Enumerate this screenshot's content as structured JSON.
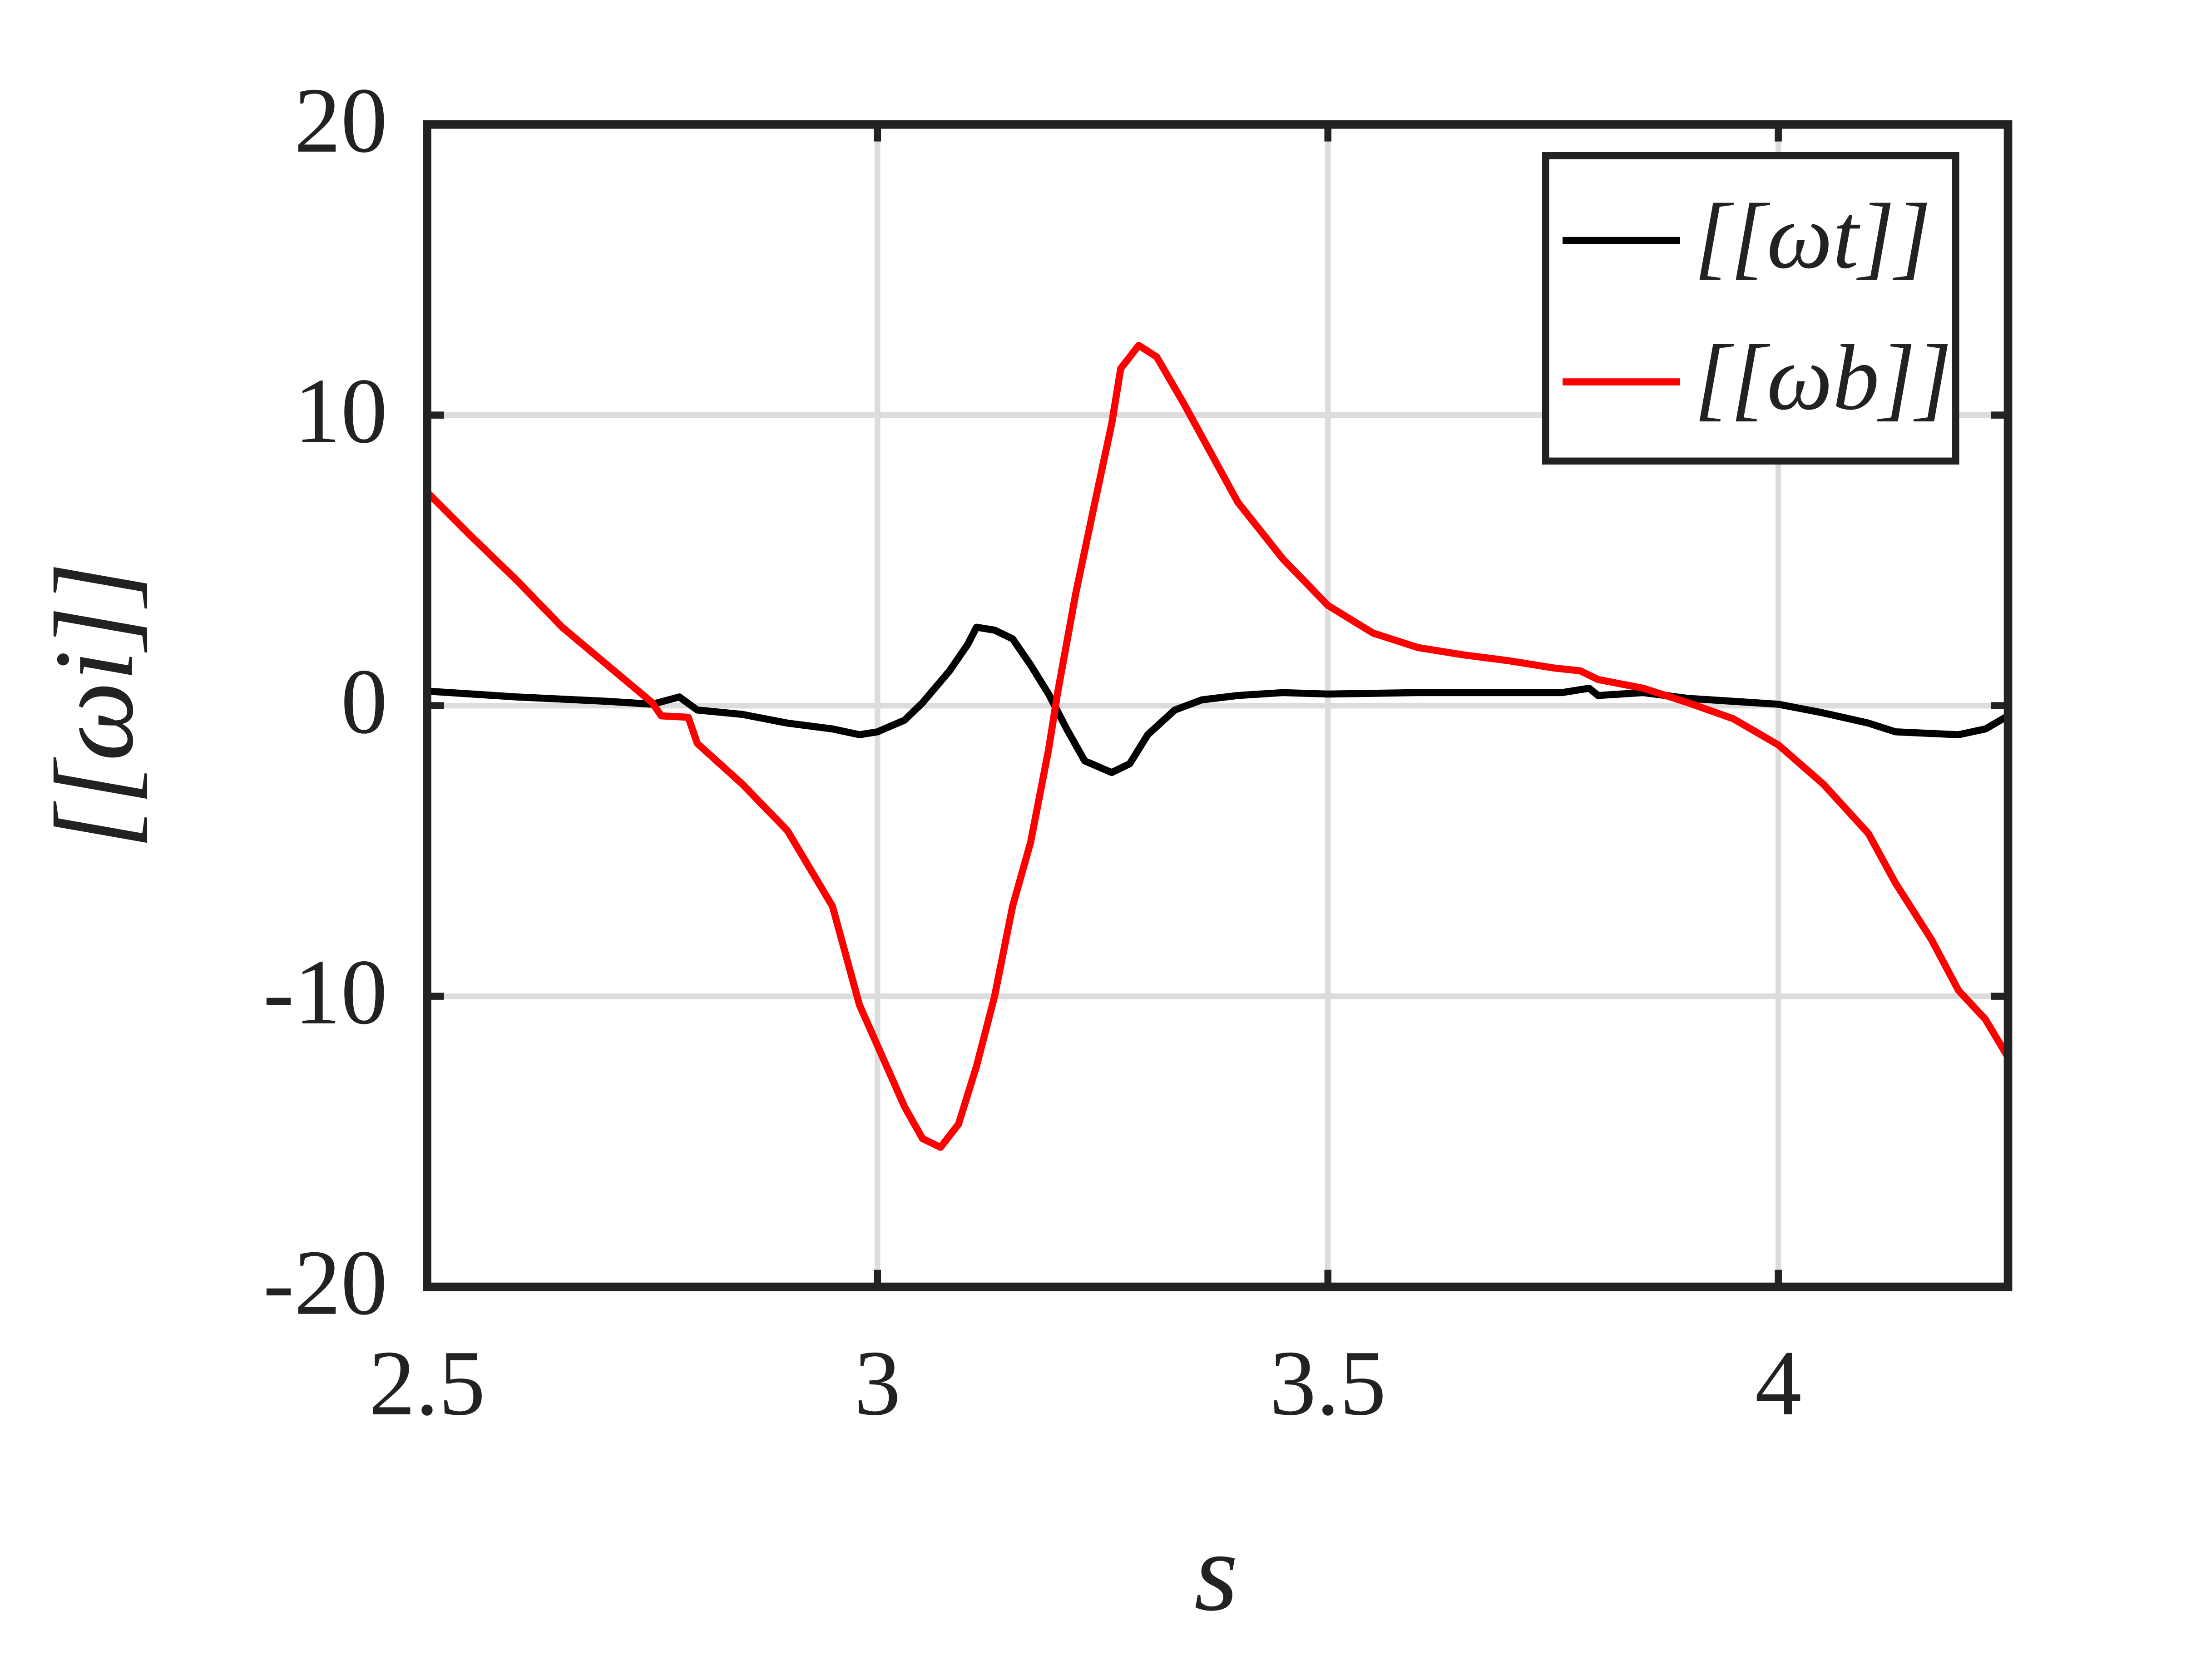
{
  "chart_data": {
    "type": "line",
    "xlabel": "s",
    "ylabel": "[[ωi]]",
    "xlim": [
      2.5,
      4.255
    ],
    "ylim": [
      -20,
      20
    ],
    "xticks": [
      2.5,
      3,
      3.5,
      4
    ],
    "yticks": [
      -20,
      -10,
      0,
      10,
      20
    ],
    "grid": true,
    "legend": "upper right",
    "series": [
      {
        "name": "[[ωt]]",
        "color": "#000000",
        "x": [
          2.5,
          2.55,
          2.6,
          2.7,
          2.75,
          2.78,
          2.8,
          2.85,
          2.9,
          2.95,
          2.98,
          3.0,
          3.03,
          3.05,
          3.08,
          3.1,
          3.11,
          3.13,
          3.15,
          3.17,
          3.19,
          3.21,
          3.23,
          3.26,
          3.28,
          3.3,
          3.33,
          3.36,
          3.4,
          3.45,
          3.5,
          3.6,
          3.7,
          3.76,
          3.79,
          3.8,
          3.85,
          3.9,
          3.95,
          4.0,
          4.05,
          4.1,
          4.13,
          4.2,
          4.23,
          4.255
        ],
        "values": [
          0.5,
          0.4,
          0.3,
          0.15,
          0.05,
          0.3,
          -0.15,
          -0.3,
          -0.6,
          -0.8,
          -1.0,
          -0.9,
          -0.5,
          0.1,
          1.2,
          2.1,
          2.7,
          2.6,
          2.3,
          1.4,
          0.4,
          -0.8,
          -1.9,
          -2.3,
          -2.0,
          -1.0,
          -0.15,
          0.2,
          0.35,
          0.45,
          0.4,
          0.45,
          0.45,
          0.45,
          0.6,
          0.35,
          0.45,
          0.25,
          0.15,
          0.05,
          -0.25,
          -0.6,
          -0.9,
          -1.0,
          -0.8,
          -0.35
        ]
      },
      {
        "name": "[[ωb]]",
        "color": "#ff0000",
        "x": [
          2.5,
          2.55,
          2.6,
          2.65,
          2.7,
          2.75,
          2.76,
          2.79,
          2.8,
          2.85,
          2.9,
          2.95,
          2.98,
          3.0,
          3.03,
          3.05,
          3.07,
          3.09,
          3.11,
          3.13,
          3.15,
          3.17,
          3.19,
          3.2,
          3.22,
          3.24,
          3.26,
          3.27,
          3.29,
          3.31,
          3.34,
          3.37,
          3.4,
          3.45,
          3.5,
          3.55,
          3.6,
          3.65,
          3.7,
          3.75,
          3.78,
          3.8,
          3.85,
          3.9,
          3.95,
          4.0,
          4.05,
          4.1,
          4.13,
          4.17,
          4.2,
          4.23,
          4.255
        ],
        "values": [
          7.35,
          5.8,
          4.3,
          2.7,
          1.4,
          0.1,
          -0.35,
          -0.4,
          -1.3,
          -2.7,
          -4.3,
          -6.9,
          -10.3,
          -11.7,
          -13.8,
          -14.9,
          -15.2,
          -14.4,
          -12.4,
          -10.0,
          -6.9,
          -4.7,
          -1.5,
          0.45,
          3.85,
          6.8,
          9.7,
          11.6,
          12.4,
          12.0,
          10.4,
          8.7,
          7.0,
          5.05,
          3.45,
          2.5,
          2.0,
          1.75,
          1.55,
          1.3,
          1.2,
          0.9,
          0.6,
          0.1,
          -0.45,
          -1.35,
          -2.7,
          -4.4,
          -6.1,
          -8.05,
          -9.8,
          -10.8,
          -12.1
        ]
      }
    ]
  }
}
